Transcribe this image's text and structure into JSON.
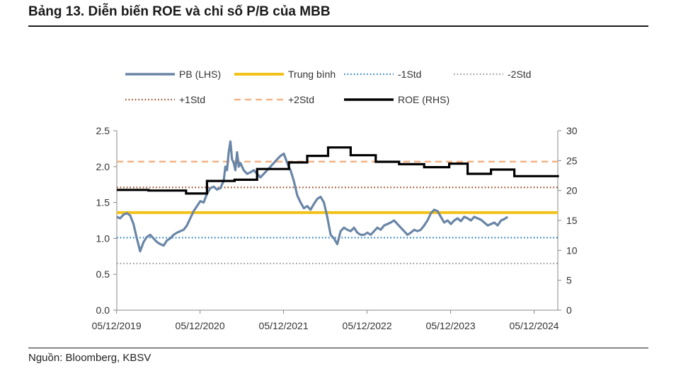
{
  "title": "Bảng 13. Diễn biến ROE và chỉ số P/B của MBB",
  "source": "Nguồn: Bloomberg, KBSV",
  "chart_data": {
    "type": "line",
    "x_ticks": [
      "05/12/2019",
      "05/12/2020",
      "05/12/2021",
      "05/12/2022",
      "05/12/2023",
      "05/12/2024"
    ],
    "y_left": {
      "range": [
        0,
        2.5
      ],
      "ticks": [
        "0.0",
        "0.5",
        "1.0",
        "1.5",
        "2.0",
        "2.5"
      ]
    },
    "y_right": {
      "range": [
        0,
        30
      ],
      "ticks": [
        "0",
        "5",
        "10",
        "15",
        "20",
        "25",
        "30"
      ]
    },
    "legend_placement": "top",
    "grid": false,
    "reference_lines": [
      {
        "name": "Trung bình",
        "value": 1.36,
        "axis": "left",
        "color": "#f2c21b",
        "style": "solid"
      },
      {
        "name": "-1Std",
        "value": 1.01,
        "axis": "left",
        "color": "#2e86c1",
        "style": "dotted"
      },
      {
        "name": "-2Std",
        "value": 0.65,
        "axis": "left",
        "color": "#9e9e9e",
        "style": "dotted"
      },
      {
        "name": "+1Std",
        "value": 1.71,
        "axis": "left",
        "color": "#a0522d",
        "style": "dotted"
      },
      {
        "name": "+2Std",
        "value": 2.07,
        "axis": "left",
        "color": "#f4b183",
        "style": "dashed"
      }
    ],
    "series": [
      {
        "name": "PB (LHS)",
        "axis": "left",
        "color": "#6a86a6",
        "points": [
          [
            2019.92,
            1.3
          ],
          [
            2019.96,
            1.28
          ],
          [
            2020.0,
            1.33
          ],
          [
            2020.04,
            1.35
          ],
          [
            2020.08,
            1.32
          ],
          [
            2020.12,
            1.2
          ],
          [
            2020.16,
            1.0
          ],
          [
            2020.2,
            0.82
          ],
          [
            2020.24,
            0.95
          ],
          [
            2020.28,
            1.02
          ],
          [
            2020.32,
            1.05
          ],
          [
            2020.36,
            1.0
          ],
          [
            2020.4,
            0.95
          ],
          [
            2020.44,
            0.92
          ],
          [
            2020.48,
            0.9
          ],
          [
            2020.52,
            0.97
          ],
          [
            2020.56,
            1.0
          ],
          [
            2020.6,
            1.05
          ],
          [
            2020.64,
            1.08
          ],
          [
            2020.68,
            1.1
          ],
          [
            2020.72,
            1.12
          ],
          [
            2020.76,
            1.18
          ],
          [
            2020.8,
            1.28
          ],
          [
            2020.84,
            1.38
          ],
          [
            2020.88,
            1.45
          ],
          [
            2020.92,
            1.52
          ],
          [
            2020.96,
            1.5
          ],
          [
            2021.0,
            1.62
          ],
          [
            2021.04,
            1.7
          ],
          [
            2021.08,
            1.72
          ],
          [
            2021.12,
            1.68
          ],
          [
            2021.16,
            1.7
          ],
          [
            2021.2,
            1.8
          ],
          [
            2021.22,
            2.0
          ],
          [
            2021.24,
            1.95
          ],
          [
            2021.26,
            2.2
          ],
          [
            2021.28,
            2.35
          ],
          [
            2021.3,
            2.1
          ],
          [
            2021.32,
            2.05
          ],
          [
            2021.34,
            1.95
          ],
          [
            2021.36,
            2.2
          ],
          [
            2021.38,
            2.0
          ],
          [
            2021.4,
            2.05
          ],
          [
            2021.44,
            1.95
          ],
          [
            2021.48,
            1.9
          ],
          [
            2021.52,
            1.92
          ],
          [
            2021.56,
            1.95
          ],
          [
            2021.6,
            1.9
          ],
          [
            2021.64,
            1.85
          ],
          [
            2021.68,
            1.9
          ],
          [
            2021.72,
            1.95
          ],
          [
            2021.76,
            2.0
          ],
          [
            2021.8,
            2.05
          ],
          [
            2021.84,
            2.1
          ],
          [
            2021.88,
            2.15
          ],
          [
            2021.92,
            2.18
          ],
          [
            2021.96,
            2.05
          ],
          [
            2022.0,
            1.95
          ],
          [
            2022.04,
            1.8
          ],
          [
            2022.08,
            1.6
          ],
          [
            2022.12,
            1.5
          ],
          [
            2022.16,
            1.42
          ],
          [
            2022.2,
            1.45
          ],
          [
            2022.24,
            1.4
          ],
          [
            2022.28,
            1.48
          ],
          [
            2022.32,
            1.55
          ],
          [
            2022.36,
            1.58
          ],
          [
            2022.4,
            1.5
          ],
          [
            2022.44,
            1.3
          ],
          [
            2022.48,
            1.05
          ],
          [
            2022.52,
            1.0
          ],
          [
            2022.56,
            0.92
          ],
          [
            2022.6,
            1.1
          ],
          [
            2022.64,
            1.15
          ],
          [
            2022.68,
            1.12
          ],
          [
            2022.72,
            1.1
          ],
          [
            2022.76,
            1.15
          ],
          [
            2022.8,
            1.08
          ],
          [
            2022.84,
            1.05
          ],
          [
            2022.88,
            1.05
          ],
          [
            2022.92,
            1.08
          ],
          [
            2022.96,
            1.05
          ],
          [
            2023.0,
            1.1
          ],
          [
            2023.04,
            1.15
          ],
          [
            2023.08,
            1.12
          ],
          [
            2023.12,
            1.18
          ],
          [
            2023.16,
            1.2
          ],
          [
            2023.2,
            1.22
          ],
          [
            2023.24,
            1.25
          ],
          [
            2023.28,
            1.2
          ],
          [
            2023.32,
            1.15
          ],
          [
            2023.36,
            1.1
          ],
          [
            2023.4,
            1.05
          ],
          [
            2023.44,
            1.08
          ],
          [
            2023.48,
            1.12
          ],
          [
            2023.52,
            1.1
          ],
          [
            2023.56,
            1.12
          ],
          [
            2023.6,
            1.18
          ],
          [
            2023.64,
            1.25
          ],
          [
            2023.68,
            1.35
          ],
          [
            2023.72,
            1.4
          ],
          [
            2023.76,
            1.38
          ],
          [
            2023.8,
            1.3
          ],
          [
            2023.84,
            1.22
          ],
          [
            2023.88,
            1.25
          ],
          [
            2023.92,
            1.2
          ],
          [
            2023.96,
            1.25
          ],
          [
            2024.0,
            1.28
          ],
          [
            2024.04,
            1.24
          ],
          [
            2024.08,
            1.3
          ],
          [
            2024.12,
            1.28
          ],
          [
            2024.16,
            1.25
          ],
          [
            2024.2,
            1.3
          ],
          [
            2024.24,
            1.28
          ],
          [
            2024.28,
            1.26
          ],
          [
            2024.32,
            1.22
          ],
          [
            2024.36,
            1.18
          ],
          [
            2024.4,
            1.2
          ],
          [
            2024.44,
            1.22
          ],
          [
            2024.48,
            1.18
          ],
          [
            2024.52,
            1.25
          ],
          [
            2024.56,
            1.27
          ],
          [
            2024.6,
            1.3
          ]
        ]
      },
      {
        "name": "ROE (RHS)",
        "axis": "right",
        "color": "#000000",
        "step": true,
        "points": [
          [
            2019.92,
            20.1
          ],
          [
            2020.3,
            20.0
          ],
          [
            2020.75,
            19.5
          ],
          [
            2021.0,
            21.6
          ],
          [
            2021.33,
            21.8
          ],
          [
            2021.6,
            23.6
          ],
          [
            2021.98,
            24.7
          ],
          [
            2022.2,
            25.8
          ],
          [
            2022.45,
            27.2
          ],
          [
            2022.72,
            25.9
          ],
          [
            2023.02,
            24.8
          ],
          [
            2023.3,
            24.4
          ],
          [
            2023.6,
            23.9
          ],
          [
            2023.9,
            24.5
          ],
          [
            2024.12,
            22.8
          ],
          [
            2024.4,
            23.5
          ],
          [
            2024.68,
            22.4
          ],
          [
            2025.3,
            22.6
          ]
        ]
      }
    ]
  }
}
